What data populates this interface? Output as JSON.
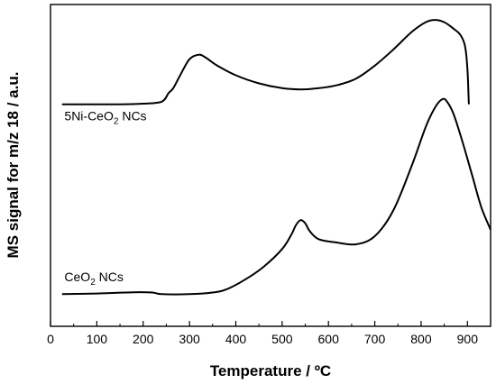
{
  "chart_data": {
    "type": "line",
    "xlabel": "Temperature / ºC",
    "ylabel": "MS signal for m/z 18 / a.u.",
    "xlim": [
      0,
      950
    ],
    "ylim": [
      0,
      100
    ],
    "x_ticks": [
      0,
      100,
      200,
      300,
      400,
      500,
      600,
      700,
      800,
      900
    ],
    "grid": false,
    "legend": "none",
    "series": [
      {
        "name": "5Ni-CeO2 NCs",
        "label_main": "5Ni-CeO",
        "label_sub": "2",
        "label_tail": " NCs",
        "label_at": [
          30,
          64
        ],
        "x": [
          25,
          80,
          150,
          200,
          240,
          255,
          265,
          280,
          300,
          320,
          335,
          360,
          400,
          450,
          500,
          540,
          580,
          620,
          660,
          700,
          740,
          780,
          810,
          830,
          850,
          870,
          885,
          895,
          900,
          903
        ],
        "y": [
          69.0,
          69.0,
          69.0,
          69.2,
          69.8,
          72.5,
          74.0,
          78.0,
          83.0,
          84.4,
          83.5,
          81.0,
          78.0,
          75.5,
          74.0,
          73.6,
          74.0,
          75.0,
          77.0,
          81.0,
          86.0,
          91.5,
          94.5,
          95.2,
          94.5,
          92.5,
          90.5,
          87.0,
          80.0,
          69.0
        ]
      },
      {
        "name": "CeO2 NCs",
        "label_main": "CeO",
        "label_sub": "2",
        "label_tail": " NCs",
        "label_at": [
          30,
          14
        ],
        "x": [
          25,
          100,
          180,
          220,
          240,
          300,
          350,
          380,
          420,
          460,
          500,
          520,
          530,
          540,
          550,
          560,
          580,
          620,
          660,
          700,
          740,
          780,
          810,
          830,
          845,
          855,
          870,
          890,
          910,
          930,
          950
        ],
        "y": [
          10.0,
          10.2,
          10.6,
          10.5,
          10.0,
          10.0,
          10.5,
          11.5,
          14.5,
          18.5,
          24.0,
          28.5,
          31.5,
          33.0,
          32.0,
          29.5,
          27.0,
          26.0,
          25.5,
          28.0,
          36.0,
          50.0,
          62.0,
          68.0,
          70.5,
          70.0,
          66.0,
          57.0,
          47.0,
          37.0,
          30.0
        ]
      }
    ]
  }
}
